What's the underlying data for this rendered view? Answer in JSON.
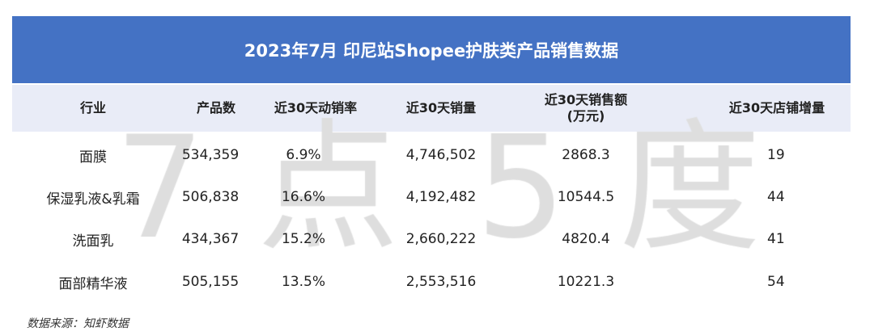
{
  "title": "2023年7月 印尼站Shopee护肤类产品销售数据",
  "watermark": [
    "7",
    "点",
    "5",
    "度"
  ],
  "colors": {
    "title_bg": "#4472c4",
    "header_bg": "#e9ecf7",
    "watermark": "#dedede"
  },
  "table": {
    "headers": [
      "行业",
      "产品数",
      "近30天动销率",
      "近30天销量",
      "近30天销售额",
      "(万元)",
      "近30天店铺增量"
    ],
    "rows": [
      [
        "面膜",
        "534,359",
        "6.9%",
        "4,746,502",
        "2868.3",
        "19"
      ],
      [
        "保湿乳液&乳霜",
        "506,838",
        "16.6%",
        "4,192,482",
        "10544.5",
        "44"
      ],
      [
        "洗面乳",
        "434,367",
        "15.2%",
        "2,660,222",
        "4820.4",
        "41"
      ],
      [
        "面部精华液",
        "505,155",
        "13.5%",
        "2,553,516",
        "10221.3",
        "54"
      ]
    ]
  },
  "footer": "数据来源：知虾数据"
}
